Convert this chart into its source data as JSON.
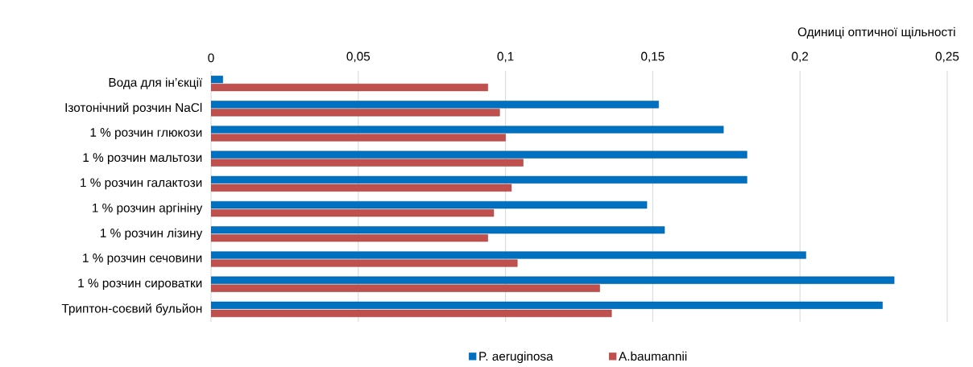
{
  "chart_data": {
    "type": "bar",
    "orientation": "horizontal",
    "xlabel": "Одиниці оптичної щільності",
    "categories": [
      "Вода для ін’єкції",
      "Ізотонічний розчин NaCl",
      "1 % розчин глюкози",
      "1 % розчин мальтози",
      "1 % розчин галактози",
      "1 % розчин аргініну",
      "1 % розчин лізину",
      "1 % розчин сечовини",
      "1 % розчин сироватки",
      "Триптон-соєвий бульйон"
    ],
    "series": [
      {
        "name": "P. aeruginosa",
        "color": "#0070c0",
        "values": [
          0.004,
          0.152,
          0.174,
          0.182,
          0.182,
          0.148,
          0.154,
          0.202,
          0.232,
          0.228
        ]
      },
      {
        "name": "A.baumannii",
        "color": "#c0504d",
        "values": [
          0.094,
          0.098,
          0.1,
          0.106,
          0.102,
          0.096,
          0.094,
          0.104,
          0.132,
          0.136
        ]
      }
    ],
    "xlim": [
      0,
      0.25
    ],
    "xticks": [
      0,
      {
        "value": 0.05,
        "label": "0,05"
      },
      {
        "value": 0.1,
        "label": "0,1"
      },
      {
        "value": 0.15,
        "label": "0,15"
      },
      {
        "value": 0.2,
        "label": "0,2"
      },
      {
        "value": 0.25,
        "label": "0,25"
      }
    ],
    "grid": "x",
    "legend": "bottom"
  }
}
